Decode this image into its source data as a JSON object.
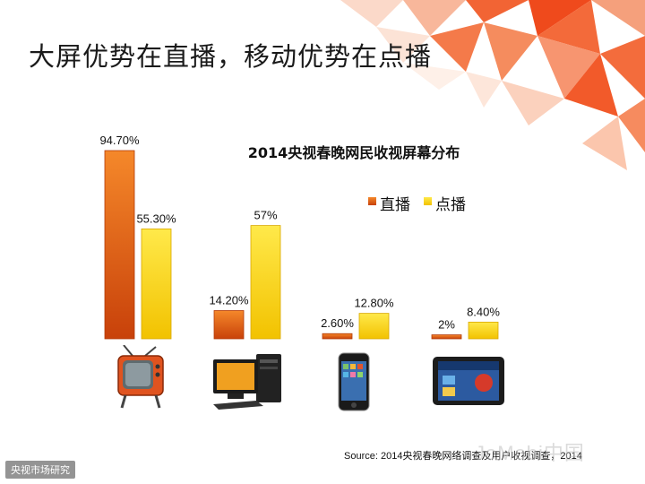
{
  "slide": {
    "title": "大屏优势在直播，移动优势在点播",
    "source": "Source: 2014央视春晚网络调查及用户收视调查，2014",
    "watermark_left": "央视市场研究",
    "watermark_right": "JoMobi中国"
  },
  "icons": [
    "tv-icon",
    "desktop-computer-icon",
    "smartphone-icon",
    "tablet-icon"
  ],
  "colors": {
    "live_top": "#f5882a",
    "live_bottom": "#c8410a",
    "vod_top": "#ffe94a",
    "vod_bottom": "#f2c200",
    "accent": "#f05a28"
  },
  "chart_data": {
    "type": "bar",
    "title": "2014央视春晚网民收视屏幕分布",
    "categories": [
      "电视",
      "电脑",
      "手机",
      "平板"
    ],
    "series": [
      {
        "name": "直播",
        "values": [
          94.7,
          14.2,
          2.6,
          2.0
        ],
        "labels": [
          "94.70%",
          "14.20%",
          "2.60%",
          "2%"
        ]
      },
      {
        "name": "点播",
        "values": [
          55.3,
          57.0,
          12.8,
          8.4
        ],
        "labels": [
          "55.30%",
          "57%",
          "12.80%",
          "8.40%"
        ]
      }
    ],
    "ylim": [
      0,
      100
    ],
    "grid": false,
    "legend": "top-right"
  }
}
